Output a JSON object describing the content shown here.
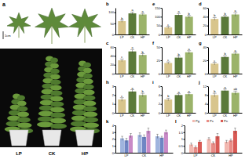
{
  "photo_panel": {
    "label": "a",
    "scale_bar": "1cm",
    "groups": [
      "LP",
      "CK",
      "HP"
    ]
  },
  "chart_data": [
    {
      "type": "bar",
      "title": "b",
      "categories": [
        "LP",
        "CK",
        "HP"
      ],
      "values": [
        60,
        95,
        90
      ],
      "errors": [
        5,
        6,
        5
      ],
      "annotations": [
        "b",
        "a",
        "a"
      ],
      "colors": [
        "#d8c58c",
        "#5b7a3a",
        "#9bb36a"
      ],
      "ylim": [
        0,
        120
      ],
      "yticks": [
        0,
        50,
        100
      ]
    },
    {
      "type": "bar",
      "title": "e",
      "categories": [
        "LP",
        "CK",
        "HP"
      ],
      "values": [
        40,
        110,
        100
      ],
      "errors": [
        6,
        8,
        7
      ],
      "annotations": [
        "c",
        "a",
        "b"
      ],
      "colors": [
        "#d8c58c",
        "#5b7a3a",
        "#9bb36a"
      ],
      "ylim": [
        0,
        150
      ],
      "yticks": [
        0,
        50,
        100,
        150
      ]
    },
    {
      "type": "bar",
      "title": "d",
      "categories": [
        "LP",
        "CK",
        "HP"
      ],
      "values": [
        35,
        40,
        45
      ],
      "errors": [
        3,
        3,
        4
      ],
      "annotations": [
        "b",
        "b",
        "a"
      ],
      "colors": [
        "#d8c58c",
        "#5b7a3a",
        "#9bb36a"
      ],
      "ylim": [
        0,
        60
      ],
      "yticks": [
        0,
        20,
        40,
        60
      ]
    },
    {
      "type": "bar",
      "title": "c",
      "categories": [
        "LP",
        "CK",
        "HP"
      ],
      "values": [
        30,
        50,
        42
      ],
      "errors": [
        3,
        4,
        3
      ],
      "annotations": [
        "c",
        "a",
        "b"
      ],
      "colors": [
        "#d8c58c",
        "#5b7a3a",
        "#9bb36a"
      ],
      "ylim": [
        0,
        60
      ],
      "yticks": [
        0,
        20,
        40,
        60
      ]
    },
    {
      "type": "bar",
      "title": "f",
      "categories": [
        "LP",
        "CK",
        "HP"
      ],
      "values": [
        20,
        30,
        40
      ],
      "errors": [
        2,
        3,
        3
      ],
      "annotations": [
        "c",
        "b",
        "a"
      ],
      "colors": [
        "#d8c58c",
        "#5b7a3a",
        "#9bb36a"
      ],
      "ylim": [
        0,
        50
      ],
      "yticks": [
        0,
        25,
        50
      ]
    },
    {
      "type": "bar",
      "title": "g",
      "categories": [
        "LP",
        "CK",
        "HP"
      ],
      "values": [
        15,
        25,
        30
      ],
      "errors": [
        2,
        2,
        2
      ],
      "annotations": [
        "c",
        "b",
        "a"
      ],
      "colors": [
        "#d8c58c",
        "#5b7a3a",
        "#9bb36a"
      ],
      "ylim": [
        0,
        40
      ],
      "yticks": [
        0,
        20,
        40
      ]
    },
    {
      "type": "bar",
      "title": "h",
      "categories": [
        "LP",
        "CK",
        "HP"
      ],
      "values": [
        1.5,
        2.4,
        2.0
      ],
      "errors": [
        0.2,
        0.2,
        0.2
      ],
      "annotations": [
        "c",
        "a",
        "b"
      ],
      "colors": [
        "#d8c58c",
        "#5b7a3a",
        "#9bb36a"
      ],
      "ylim": [
        0,
        3
      ],
      "yticks": [
        0,
        1,
        2,
        3
      ]
    },
    {
      "type": "bar",
      "title": "i",
      "categories": [
        "LP",
        "CK",
        "HP"
      ],
      "values": [
        3,
        4,
        4.2
      ],
      "errors": [
        0.3,
        0.3,
        0.3
      ],
      "annotations": [
        "b",
        "a",
        "a"
      ],
      "colors": [
        "#d8c58c",
        "#5b7a3a",
        "#9bb36a"
      ],
      "ylim": [
        0,
        6
      ],
      "yticks": [
        0,
        2,
        4,
        6
      ]
    },
    {
      "type": "bar",
      "title": "j",
      "categories": [
        "LP",
        "CK",
        "HP"
      ],
      "values": [
        8,
        10,
        9
      ],
      "errors": [
        0.8,
        0.7,
        0.8
      ],
      "annotations": [
        "b",
        "a",
        "ab"
      ],
      "colors": [
        "#d8c58c",
        "#5b7a3a",
        "#9bb36a"
      ],
      "ylim": [
        0,
        12
      ],
      "yticks": [
        0,
        4,
        8,
        12
      ]
    },
    {
      "type": "bar",
      "title": "k",
      "categories": [
        "LP",
        "CK",
        "HP"
      ],
      "series": [
        {
          "color": "#9fb4de",
          "values": [
            2.1,
            2.6,
            2.4
          ],
          "errors": [
            0.3,
            0.3,
            0.3
          ]
        },
        {
          "color": "#6f86c4",
          "values": [
            1.8,
            2.3,
            2.2
          ],
          "errors": [
            0.3,
            0.3,
            0.2
          ]
        },
        {
          "color": "#c98ac7",
          "values": [
            2.5,
            3.2,
            3.0
          ],
          "errors": [
            0.3,
            0.4,
            0.3
          ]
        }
      ],
      "ylim": [
        0,
        4
      ],
      "yticks": [
        0,
        1,
        2,
        3,
        4
      ]
    },
    {
      "type": "bar",
      "title": "l",
      "categories": [
        "LP",
        "CK",
        "HP"
      ],
      "series": [
        {
          "name": "Pg",
          "color": "#f2b8b0",
          "values": [
            0.6,
            1.0,
            0.8
          ],
          "errors": [
            0.1,
            0.1,
            0.1
          ]
        },
        {
          "name": "Ps",
          "color": "#e98c86",
          "values": [
            0.4,
            0.7,
            0.9
          ],
          "errors": [
            0.1,
            0.1,
            0.1
          ]
        },
        {
          "name": "Pn",
          "color": "#d95a55",
          "values": [
            0.8,
            1.2,
            1.6
          ],
          "errors": [
            0.1,
            0.2,
            0.2
          ]
        }
      ],
      "legend": "top",
      "ylim": [
        0,
        2
      ],
      "yticks": [
        0,
        0.5,
        1,
        1.5,
        2
      ]
    }
  ]
}
